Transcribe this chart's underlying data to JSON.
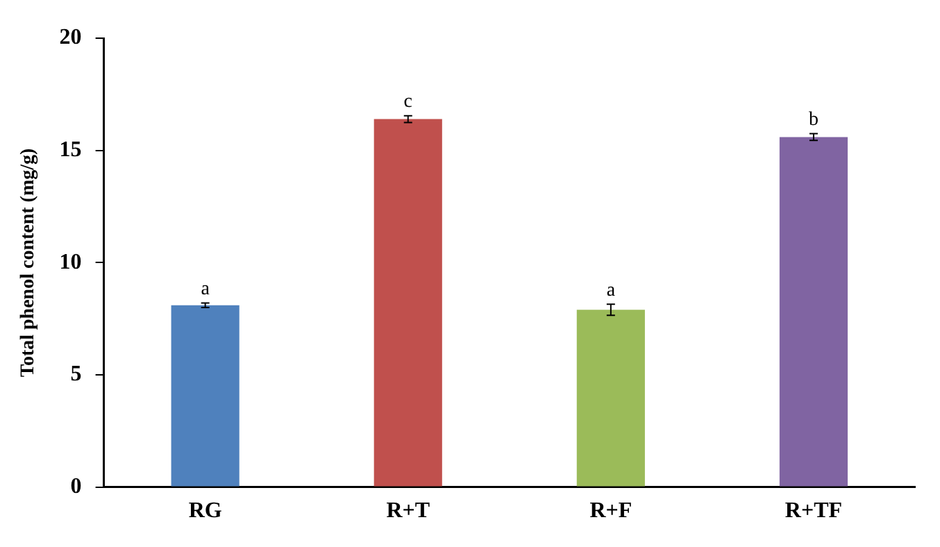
{
  "chart_data": {
    "type": "bar",
    "ylabel": "Total phenol content (mg/g)",
    "categories": [
      "RG",
      "R+T",
      "R+F",
      "R+TF"
    ],
    "values": [
      8.1,
      16.4,
      7.9,
      15.6
    ],
    "colors": [
      "#4f81bd",
      "#c0504d",
      "#9bbb59",
      "#8064a2"
    ],
    "errors": [
      0.1,
      0.15,
      0.25,
      0.15
    ],
    "ylim": [
      0,
      20
    ],
    "yticks": [
      0,
      5,
      10,
      15,
      20
    ],
    "grid": false,
    "legend": false,
    "annotations": [
      {
        "text": "a",
        "x": "RG",
        "y": 8.2
      },
      {
        "text": "c",
        "x": "R+T",
        "y": 16.55
      },
      {
        "text": "a",
        "x": "R+F",
        "y": 8.15
      },
      {
        "text": "b",
        "x": "R+TF",
        "y": 15.75
      }
    ]
  }
}
